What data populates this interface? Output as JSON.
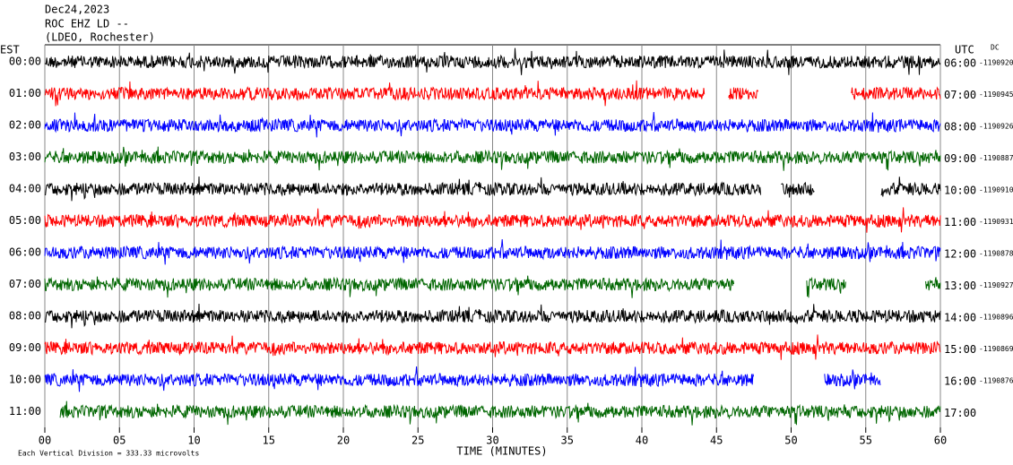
{
  "chart_data": {
    "type": "helicorder",
    "title": [
      "Dec24,2023",
      "ROC EHZ LD --",
      "(LDEO, Rochester)"
    ],
    "left_axis_label": "EST",
    "right_axis_label": "UTC",
    "dc_label": "DC",
    "rows": [
      {
        "est": "00:00",
        "utc": "06:00",
        "dc": -1190920,
        "color": "#000000"
      },
      {
        "est": "01:00",
        "utc": "07:00",
        "dc": -1190945,
        "color": "#ff0000"
      },
      {
        "est": "02:00",
        "utc": "08:00",
        "dc": -1190926,
        "color": "#0000ff"
      },
      {
        "est": "03:00",
        "utc": "09:00",
        "dc": -1190887,
        "color": "#006600"
      },
      {
        "est": "04:00",
        "utc": "10:00",
        "dc": -1190910,
        "color": "#000000"
      },
      {
        "est": "05:00",
        "utc": "11:00",
        "dc": -1190931,
        "color": "#ff0000"
      },
      {
        "est": "06:00",
        "utc": "12:00",
        "dc": -1190878,
        "color": "#0000ff"
      },
      {
        "est": "07:00",
        "utc": "13:00",
        "dc": -1190927,
        "color": "#006600"
      },
      {
        "est": "08:00",
        "utc": "14:00",
        "dc": -1190896,
        "color": "#000000"
      },
      {
        "est": "09:00",
        "utc": "15:00",
        "dc": -1190869,
        "color": "#ff0000"
      },
      {
        "est": "10:00",
        "utc": "16:00",
        "dc": -1190876,
        "color": "#0000ff"
      },
      {
        "est": "11:00",
        "utc": "17:00",
        "dc": null,
        "color": "#006600"
      }
    ],
    "xlim": [
      0,
      60
    ],
    "xticks": [
      {
        "value": 0,
        "label": "00"
      },
      {
        "value": 5,
        "label": "05"
      },
      10,
      15,
      20,
      25,
      30,
      35,
      40,
      45,
      50,
      55,
      60
    ],
    "xlabel": "TIME (MINUTES)",
    "footer": "Each Vertical Division =  333.33 microvolts"
  }
}
